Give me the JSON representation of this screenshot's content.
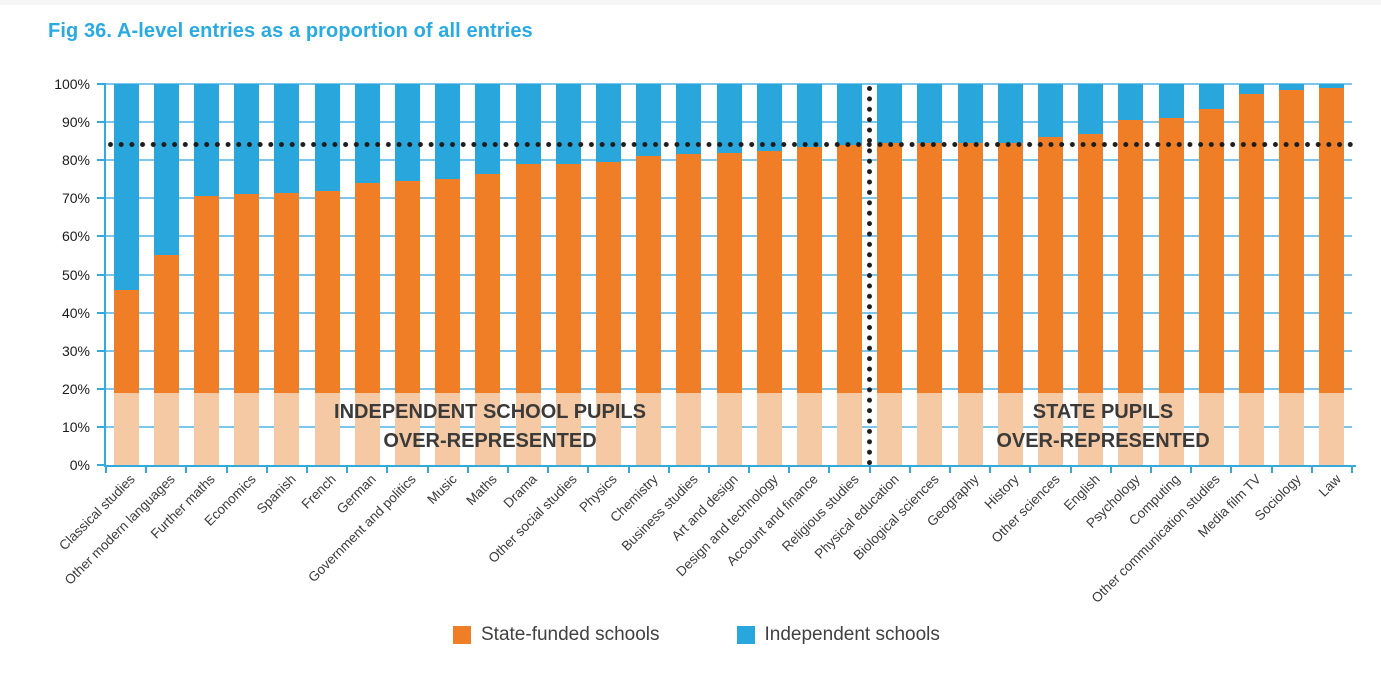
{
  "figure": {
    "title": "Fig 36. A-level entries as a proportion of all entries"
  },
  "chart_data": {
    "type": "bar",
    "stacked": true,
    "unit": "percent",
    "title": "Fig 36. A-level entries as a proportion of all entries",
    "xlabel": "",
    "ylabel": "",
    "ylim": [
      0,
      100
    ],
    "grid": true,
    "legend_position": "bottom",
    "ytick_labels": [
      "0%",
      "10%",
      "20%",
      "30%",
      "40%",
      "50%",
      "60%",
      "70%",
      "80%",
      "90%",
      "100%"
    ],
    "categories": [
      "Classical studies",
      "Other modern languages",
      "Further maths",
      "Economics",
      "Spanish",
      "French",
      "German",
      "Government and politics",
      "Music",
      "Maths",
      "Drama",
      "Other social studies",
      "Physics",
      "Chemistry",
      "Business studies",
      "Art and design",
      "Design and technology",
      "Account and finance",
      "Religious studies",
      "Physical education",
      "Biological sciences",
      "Geography",
      "History",
      "Other sciences",
      "English",
      "Psychology",
      "Computing",
      "Other communication studies",
      "Media film TV",
      "Sociology",
      "Law"
    ],
    "series": [
      {
        "name": "State-funded schools",
        "color": "#F07E26",
        "values": [
          46,
          55,
          70.5,
          71,
          71.5,
          72,
          74,
          74.5,
          75,
          76.5,
          79,
          79,
          79.5,
          81,
          81.5,
          82,
          82.5,
          83.5,
          84,
          84.5,
          84.5,
          84.5,
          84.5,
          86,
          87,
          90.5,
          91,
          93.5,
          97.5,
          98.5,
          99
        ]
      },
      {
        "name": "Independent schools",
        "color": "#29A7DC",
        "values": [
          54,
          45,
          29.5,
          29,
          28.5,
          28,
          26,
          25.5,
          25,
          23.5,
          21,
          21,
          20.5,
          19,
          18.5,
          18,
          17.5,
          16.5,
          16,
          15.5,
          15.5,
          15.5,
          15.5,
          14,
          13,
          9.5,
          9,
          6.5,
          2.5,
          1.5,
          1
        ]
      }
    ],
    "reference_line": {
      "value": 84,
      "orientation": "horizontal",
      "style": "dotted",
      "color": "#1d1d1d"
    },
    "section_divider": {
      "orientation": "vertical",
      "style": "dotted",
      "between": [
        "Religious studies",
        "Physical education"
      ]
    },
    "highlight_band": {
      "from": 0,
      "to": 19,
      "bar_tint": "#F5C9A4"
    },
    "annotations": {
      "left": {
        "line1": "INDEPENDENT SCHOOL PUPILS",
        "line2": "OVER-REPRESENTED"
      },
      "right": {
        "line1": "STATE PUPILS",
        "line2": "OVER-REPRESENTED"
      }
    }
  },
  "colors": {
    "title": "#29ABE2",
    "axis": "#35A8DC",
    "gridline": "#7CC6EC",
    "state_funded": "#F07E26",
    "independent": "#29A7DC",
    "band_bar_tint": "#F5C9A4",
    "annotation_text": "#3A3A3A",
    "legend_text": "#414042"
  }
}
